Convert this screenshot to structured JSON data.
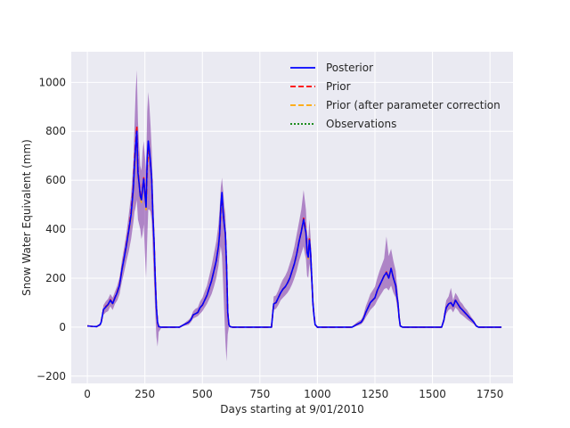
{
  "chart_data": {
    "type": "line",
    "xlabel": "Days starting at 9/01/2010",
    "ylabel": "Snow Water Equivalent (mm)",
    "xlim": [
      -70,
      1850
    ],
    "ylim": [
      -230,
      1125
    ],
    "xticks": [
      0,
      250,
      500,
      750,
      1000,
      1250,
      1500,
      1750
    ],
    "yticks": [
      -200,
      0,
      200,
      400,
      600,
      800,
      1000
    ],
    "grid": true,
    "legend_position": "top-right",
    "legend": [
      {
        "label": "Posterior",
        "color": "#0000ff",
        "style": "solid"
      },
      {
        "label": "Prior",
        "color": "#ff0000",
        "style": "dashed"
      },
      {
        "label": "Prior (after parameter correction",
        "color": "#ffa500",
        "style": "dashed"
      },
      {
        "label": "Observations",
        "color": "#008000",
        "style": "dotted"
      }
    ],
    "colors": {
      "band": "#7b2fa3",
      "background": "#eaeaf2",
      "grid": "#ffffff"
    },
    "series": [
      {
        "name": "Prior (after parameter correction",
        "x": [
          0,
          20,
          40,
          55,
          60,
          70,
          80,
          90,
          100,
          110,
          120,
          130,
          140,
          150,
          160,
          170,
          180,
          190,
          200,
          205,
          210,
          215,
          220,
          225,
          230,
          235,
          240,
          245,
          250,
          255,
          260,
          265,
          270,
          275,
          280,
          285,
          290,
          295,
          300,
          305,
          310,
          320,
          330,
          400,
          420,
          440,
          450,
          460,
          470,
          480,
          490,
          500,
          510,
          520,
          530,
          540,
          550,
          560,
          570,
          575,
          580,
          585,
          590,
          595,
          600,
          605,
          610,
          615,
          620,
          630,
          640,
          780,
          800,
          810,
          820,
          830,
          840,
          850,
          860,
          870,
          880,
          890,
          900,
          910,
          920,
          930,
          940,
          945,
          950,
          955,
          960,
          965,
          970,
          975,
          980,
          985,
          990,
          1000,
          1100,
          1150,
          1160,
          1170,
          1180,
          1190,
          1200,
          1210,
          1220,
          1230,
          1240,
          1250,
          1260,
          1270,
          1280,
          1290,
          1300,
          1310,
          1320,
          1330,
          1340,
          1345,
          1350,
          1355,
          1360,
          1370,
          1380,
          1520,
          1540,
          1550,
          1555,
          1560,
          1570,
          1580,
          1590,
          1600,
          1610,
          1620,
          1630,
          1640,
          1650,
          1660,
          1670,
          1680,
          1690,
          1700,
          1800
        ],
        "y": [
          5,
          3,
          2,
          10,
          20,
          70,
          80,
          90,
          110,
          95,
          120,
          140,
          170,
          230,
          280,
          330,
          390,
          450,
          560,
          640,
          720,
          790,
          620,
          580,
          530,
          510,
          560,
          600,
          540,
          480,
          650,
          720,
          700,
          660,
          600,
          450,
          350,
          200,
          80,
          20,
          2,
          0,
          0,
          0,
          10,
          20,
          30,
          50,
          55,
          60,
          80,
          90,
          110,
          130,
          160,
          190,
          230,
          270,
          330,
          380,
          470,
          530,
          470,
          420,
          380,
          250,
          60,
          10,
          2,
          0,
          0,
          0,
          0,
          95,
          100,
          120,
          140,
          155,
          165,
          180,
          200,
          230,
          260,
          300,
          350,
          390,
          440,
          400,
          380,
          300,
          280,
          350,
          300,
          200,
          100,
          50,
          10,
          0,
          0,
          0,
          5,
          10,
          15,
          20,
          35,
          60,
          80,
          100,
          110,
          120,
          150,
          170,
          190,
          210,
          220,
          200,
          240,
          200,
          170,
          130,
          100,
          40,
          5,
          0,
          0,
          0,
          0,
          30,
          60,
          80,
          95,
          100,
          85,
          110,
          95,
          80,
          70,
          60,
          50,
          40,
          30,
          20,
          5,
          0,
          0
        ]
      },
      {
        "name": "Prior",
        "x": [
          0,
          20,
          40,
          55,
          60,
          70,
          80,
          90,
          100,
          110,
          120,
          130,
          140,
          150,
          160,
          170,
          180,
          190,
          200,
          205,
          210,
          215,
          220,
          225,
          230,
          235,
          240,
          245,
          250,
          255,
          260,
          265,
          270,
          275,
          280,
          285,
          290,
          295,
          300,
          305,
          310,
          320,
          330,
          400,
          420,
          440,
          450,
          460,
          470,
          480,
          490,
          500,
          510,
          520,
          530,
          540,
          550,
          560,
          570,
          575,
          580,
          585,
          590,
          595,
          600,
          605,
          610,
          615,
          620,
          630,
          640,
          780,
          800,
          810,
          820,
          830,
          840,
          850,
          860,
          870,
          880,
          890,
          900,
          910,
          920,
          930,
          940,
          945,
          950,
          955,
          960,
          965,
          970,
          975,
          980,
          985,
          990,
          1000,
          1100,
          1150,
          1160,
          1170,
          1180,
          1190,
          1200,
          1210,
          1220,
          1230,
          1240,
          1250,
          1260,
          1270,
          1280,
          1290,
          1300,
          1310,
          1320,
          1330,
          1340,
          1345,
          1350,
          1355,
          1360,
          1370,
          1380,
          1520,
          1540,
          1550,
          1555,
          1560,
          1570,
          1580,
          1590,
          1600,
          1610,
          1620,
          1630,
          1640,
          1650,
          1660,
          1670,
          1680,
          1690,
          1700,
          1800
        ],
        "y": [
          5,
          3,
          2,
          10,
          20,
          72,
          85,
          92,
          112,
          98,
          122,
          145,
          175,
          235,
          285,
          340,
          400,
          470,
          580,
          680,
          750,
          820,
          640,
          590,
          540,
          530,
          570,
          610,
          550,
          500,
          660,
          740,
          710,
          660,
          600,
          450,
          350,
          200,
          80,
          20,
          2,
          0,
          0,
          0,
          10,
          20,
          30,
          50,
          55,
          60,
          80,
          90,
          110,
          130,
          160,
          190,
          230,
          270,
          330,
          380,
          480,
          540,
          470,
          420,
          380,
          250,
          60,
          10,
          2,
          0,
          0,
          0,
          0,
          95,
          100,
          120,
          140,
          155,
          165,
          180,
          200,
          230,
          260,
          300,
          350,
          390,
          445,
          420,
          390,
          310,
          290,
          360,
          310,
          210,
          100,
          50,
          10,
          0,
          0,
          0,
          5,
          10,
          15,
          20,
          35,
          60,
          80,
          100,
          110,
          120,
          150,
          170,
          190,
          210,
          225,
          200,
          240,
          200,
          170,
          130,
          100,
          40,
          5,
          0,
          0,
          0,
          0,
          30,
          60,
          80,
          95,
          100,
          85,
          110,
          95,
          80,
          70,
          60,
          50,
          40,
          30,
          20,
          5,
          0,
          0
        ]
      },
      {
        "name": "Posterior",
        "x": [
          0,
          20,
          40,
          55,
          60,
          70,
          80,
          90,
          100,
          110,
          120,
          130,
          140,
          150,
          160,
          170,
          180,
          190,
          200,
          205,
          210,
          215,
          220,
          225,
          230,
          235,
          240,
          245,
          250,
          255,
          260,
          265,
          270,
          275,
          280,
          285,
          290,
          295,
          300,
          305,
          310,
          320,
          330,
          400,
          420,
          440,
          450,
          460,
          470,
          480,
          490,
          500,
          510,
          520,
          530,
          540,
          550,
          560,
          570,
          575,
          580,
          585,
          590,
          595,
          600,
          605,
          610,
          615,
          620,
          630,
          640,
          780,
          800,
          810,
          820,
          830,
          840,
          850,
          860,
          870,
          880,
          890,
          900,
          910,
          920,
          930,
          940,
          945,
          950,
          955,
          960,
          965,
          970,
          975,
          980,
          985,
          990,
          1000,
          1100,
          1150,
          1160,
          1170,
          1180,
          1190,
          1200,
          1210,
          1220,
          1230,
          1240,
          1250,
          1260,
          1270,
          1280,
          1290,
          1300,
          1310,
          1320,
          1330,
          1340,
          1345,
          1350,
          1355,
          1360,
          1370,
          1380,
          1520,
          1540,
          1550,
          1555,
          1560,
          1570,
          1580,
          1590,
          1600,
          1610,
          1620,
          1630,
          1640,
          1650,
          1660,
          1670,
          1680,
          1690,
          1700,
          1800
        ],
        "y": [
          5,
          3,
          2,
          10,
          20,
          72,
          82,
          92,
          110,
          96,
          120,
          142,
          172,
          232,
          282,
          335,
          395,
          460,
          570,
          660,
          735,
          800,
          630,
          585,
          535,
          520,
          565,
          605,
          545,
          490,
          690,
          760,
          720,
          665,
          600,
          450,
          350,
          200,
          80,
          20,
          2,
          0,
          0,
          0,
          10,
          20,
          30,
          50,
          55,
          60,
          80,
          90,
          110,
          130,
          160,
          190,
          230,
          270,
          330,
          380,
          490,
          550,
          470,
          420,
          380,
          250,
          60,
          10,
          2,
          0,
          0,
          0,
          0,
          95,
          100,
          120,
          140,
          155,
          165,
          180,
          200,
          230,
          260,
          300,
          350,
          390,
          440,
          410,
          385,
          305,
          285,
          355,
          305,
          205,
          100,
          50,
          10,
          0,
          0,
          0,
          5,
          10,
          15,
          20,
          35,
          60,
          80,
          100,
          110,
          120,
          150,
          170,
          190,
          210,
          222,
          200,
          240,
          200,
          170,
          130,
          100,
          40,
          5,
          0,
          0,
          0,
          0,
          30,
          60,
          80,
          95,
          100,
          85,
          110,
          95,
          80,
          70,
          60,
          50,
          40,
          30,
          20,
          5,
          0,
          0
        ]
      }
    ],
    "uncertainty_band": {
      "x": [
        0,
        20,
        40,
        55,
        60,
        70,
        80,
        90,
        100,
        110,
        120,
        130,
        140,
        150,
        160,
        170,
        180,
        190,
        200,
        205,
        210,
        215,
        220,
        225,
        230,
        235,
        240,
        245,
        250,
        255,
        260,
        265,
        270,
        275,
        280,
        285,
        290,
        295,
        300,
        305,
        310,
        320,
        330,
        400,
        420,
        440,
        450,
        460,
        470,
        480,
        490,
        500,
        510,
        520,
        530,
        540,
        550,
        560,
        570,
        575,
        580,
        585,
        590,
        595,
        600,
        605,
        610,
        615,
        620,
        630,
        640,
        780,
        800,
        810,
        820,
        830,
        840,
        850,
        860,
        870,
        880,
        890,
        900,
        910,
        920,
        930,
        940,
        945,
        950,
        955,
        960,
        965,
        970,
        975,
        980,
        985,
        990,
        1000,
        1100,
        1150,
        1160,
        1170,
        1180,
        1190,
        1200,
        1210,
        1220,
        1230,
        1240,
        1250,
        1260,
        1270,
        1280,
        1290,
        1300,
        1310,
        1320,
        1330,
        1340,
        1345,
        1350,
        1355,
        1360,
        1370,
        1380,
        1520,
        1540,
        1550,
        1555,
        1560,
        1570,
        1580,
        1590,
        1600,
        1610,
        1620,
        1630,
        1640,
        1650,
        1660,
        1670,
        1680,
        1690,
        1700,
        1800
      ],
      "upper": [
        8,
        5,
        4,
        15,
        30,
        90,
        105,
        115,
        135,
        120,
        145,
        170,
        205,
        270,
        325,
        385,
        460,
        540,
        680,
        820,
        960,
        1050,
        840,
        740,
        660,
        640,
        720,
        760,
        700,
        640,
        880,
        960,
        900,
        820,
        720,
        560,
        430,
        270,
        130,
        40,
        5,
        2,
        2,
        2,
        15,
        30,
        40,
        65,
        75,
        80,
        105,
        120,
        145,
        170,
        210,
        250,
        300,
        350,
        420,
        480,
        570,
        610,
        560,
        500,
        460,
        320,
        100,
        20,
        4,
        2,
        2,
        2,
        2,
        125,
        130,
        150,
        175,
        195,
        210,
        230,
        260,
        290,
        330,
        380,
        430,
        480,
        560,
        520,
        480,
        380,
        360,
        440,
        370,
        260,
        140,
        70,
        15,
        2,
        2,
        2,
        10,
        18,
        25,
        30,
        50,
        85,
        110,
        135,
        150,
        165,
        200,
        230,
        255,
        280,
        370,
        290,
        320,
        270,
        230,
        180,
        140,
        60,
        8,
        2,
        2,
        2,
        2,
        45,
        85,
        110,
        125,
        160,
        110,
        140,
        125,
        105,
        95,
        80,
        70,
        55,
        40,
        28,
        8,
        2,
        2
      ],
      "lower": [
        2,
        1,
        0,
        5,
        10,
        50,
        60,
        65,
        85,
        70,
        95,
        110,
        135,
        185,
        225,
        270,
        310,
        360,
        430,
        470,
        490,
        520,
        440,
        420,
        400,
        360,
        380,
        420,
        300,
        200,
        360,
        480,
        480,
        470,
        430,
        300,
        180,
        60,
        -40,
        -80,
        -20,
        -5,
        0,
        0,
        5,
        10,
        20,
        35,
        40,
        45,
        55,
        65,
        80,
        95,
        115,
        135,
        165,
        200,
        250,
        290,
        330,
        290,
        180,
        60,
        -60,
        -140,
        -30,
        0,
        0,
        0,
        0,
        0,
        0,
        70,
        75,
        90,
        110,
        120,
        130,
        140,
        155,
        175,
        200,
        230,
        270,
        300,
        330,
        300,
        280,
        210,
        200,
        260,
        220,
        150,
        70,
        30,
        5,
        0,
        0,
        0,
        2,
        5,
        8,
        12,
        22,
        40,
        55,
        70,
        80,
        90,
        110,
        125,
        140,
        155,
        160,
        150,
        170,
        140,
        120,
        90,
        65,
        25,
        2,
        0,
        0,
        0,
        0,
        18,
        40,
        55,
        70,
        75,
        60,
        80,
        70,
        55,
        48,
        40,
        32,
        25,
        18,
        12,
        2,
        0,
        0
      ]
    }
  }
}
